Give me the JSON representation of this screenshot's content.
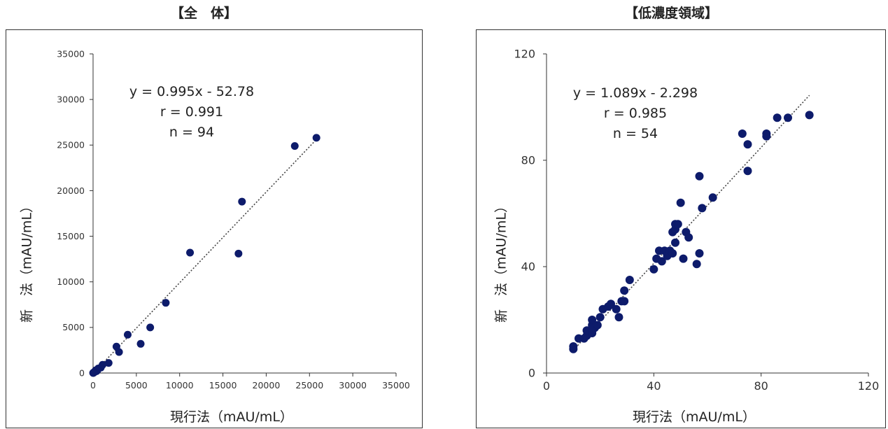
{
  "chart_data": [
    {
      "type": "scatter",
      "title": "【全　体】",
      "xlabel": "現行法（mAU/mL）",
      "ylabel": "新　法（mAU/mL）",
      "xlim": [
        0,
        35000
      ],
      "ylim": [
        0,
        35000
      ],
      "xticks": [
        "0",
        "5000",
        "10000",
        "15000",
        "20000",
        "25000",
        "30000",
        "35000"
      ],
      "yticks": [
        "0",
        "5000",
        "10000",
        "15000",
        "20000",
        "25000",
        "30000",
        "35000"
      ],
      "annotation": {
        "line1": "y = 0.995x - 52.78",
        "line2": "r = 0.991",
        "line3": "n = 94"
      },
      "fit": {
        "slope": 0.995,
        "intercept": -52.78,
        "x_range": [
          0,
          25800
        ],
        "style": "dotted"
      },
      "marker_color": "#0d1b6b",
      "series": [
        {
          "points": [
            [
              25800,
              25800
            ],
            [
              23300,
              24900
            ],
            [
              17200,
              18800
            ],
            [
              16800,
              13100
            ],
            [
              11200,
              13200
            ],
            [
              8400,
              7700
            ],
            [
              6600,
              5000
            ],
            [
              5500,
              3200
            ],
            [
              4000,
              4200
            ],
            [
              2700,
              2900
            ],
            [
              3000,
              2300
            ],
            [
              1800,
              1100
            ],
            [
              1100,
              900
            ],
            [
              900,
              600
            ],
            [
              600,
              500
            ],
            [
              500,
              300
            ],
            [
              400,
              200
            ],
            [
              300,
              300
            ],
            [
              200,
              150
            ],
            [
              150,
              100
            ],
            [
              100,
              80
            ],
            [
              80,
              50
            ],
            [
              60,
              40
            ],
            [
              40,
              30
            ],
            [
              30,
              20
            ],
            [
              20,
              15
            ],
            [
              10,
              10
            ]
          ]
        }
      ],
      "grid": false
    },
    {
      "type": "scatter",
      "title": "【低濃度領域】",
      "xlabel": "現行法（mAU/mL）",
      "ylabel": "新　法（mAU/mL）",
      "xlim": [
        0,
        120
      ],
      "ylim": [
        0,
        120
      ],
      "xticks": [
        "0",
        "40",
        "80",
        "120"
      ],
      "yticks": [
        "0",
        "40",
        "80",
        "120"
      ],
      "annotation": {
        "line1": "y = 1.089x - 2.298",
        "line2": "r = 0.985",
        "line3": "n = 54"
      },
      "fit": {
        "slope": 1.089,
        "intercept": -2.298,
        "x_range": [
          10,
          98
        ],
        "style": "dotted"
      },
      "marker_color": "#0d1b6b",
      "series": [
        {
          "points": [
            [
              10,
              9
            ],
            [
              10,
              10
            ],
            [
              12,
              13
            ],
            [
              14,
              13
            ],
            [
              15,
              14
            ],
            [
              15,
              16
            ],
            [
              17,
              15
            ],
            [
              17,
              18
            ],
            [
              17,
              20
            ],
            [
              18,
              17
            ],
            [
              19,
              18
            ],
            [
              20,
              21
            ],
            [
              21,
              24
            ],
            [
              23,
              25
            ],
            [
              24,
              26
            ],
            [
              26,
              24
            ],
            [
              27,
              21
            ],
            [
              28,
              27
            ],
            [
              29,
              27
            ],
            [
              29,
              31
            ],
            [
              31,
              35
            ],
            [
              40,
              39
            ],
            [
              41,
              43
            ],
            [
              42,
              46
            ],
            [
              43,
              42
            ],
            [
              44,
              46
            ],
            [
              45,
              44
            ],
            [
              46,
              46
            ],
            [
              47,
              45
            ],
            [
              47,
              53
            ],
            [
              48,
              54
            ],
            [
              48,
              49
            ],
            [
              48,
              56
            ],
            [
              49,
              56
            ],
            [
              50,
              64
            ],
            [
              51,
              43
            ],
            [
              52,
              53
            ],
            [
              53,
              51
            ],
            [
              56,
              41
            ],
            [
              57,
              45
            ],
            [
              57,
              74
            ],
            [
              58,
              62
            ],
            [
              62,
              66
            ],
            [
              73,
              90
            ],
            [
              75,
              76
            ],
            [
              75,
              86
            ],
            [
              82,
              89
            ],
            [
              82,
              90
            ],
            [
              86,
              96
            ],
            [
              90,
              96
            ],
            [
              98,
              97
            ]
          ]
        }
      ],
      "grid": false
    }
  ]
}
